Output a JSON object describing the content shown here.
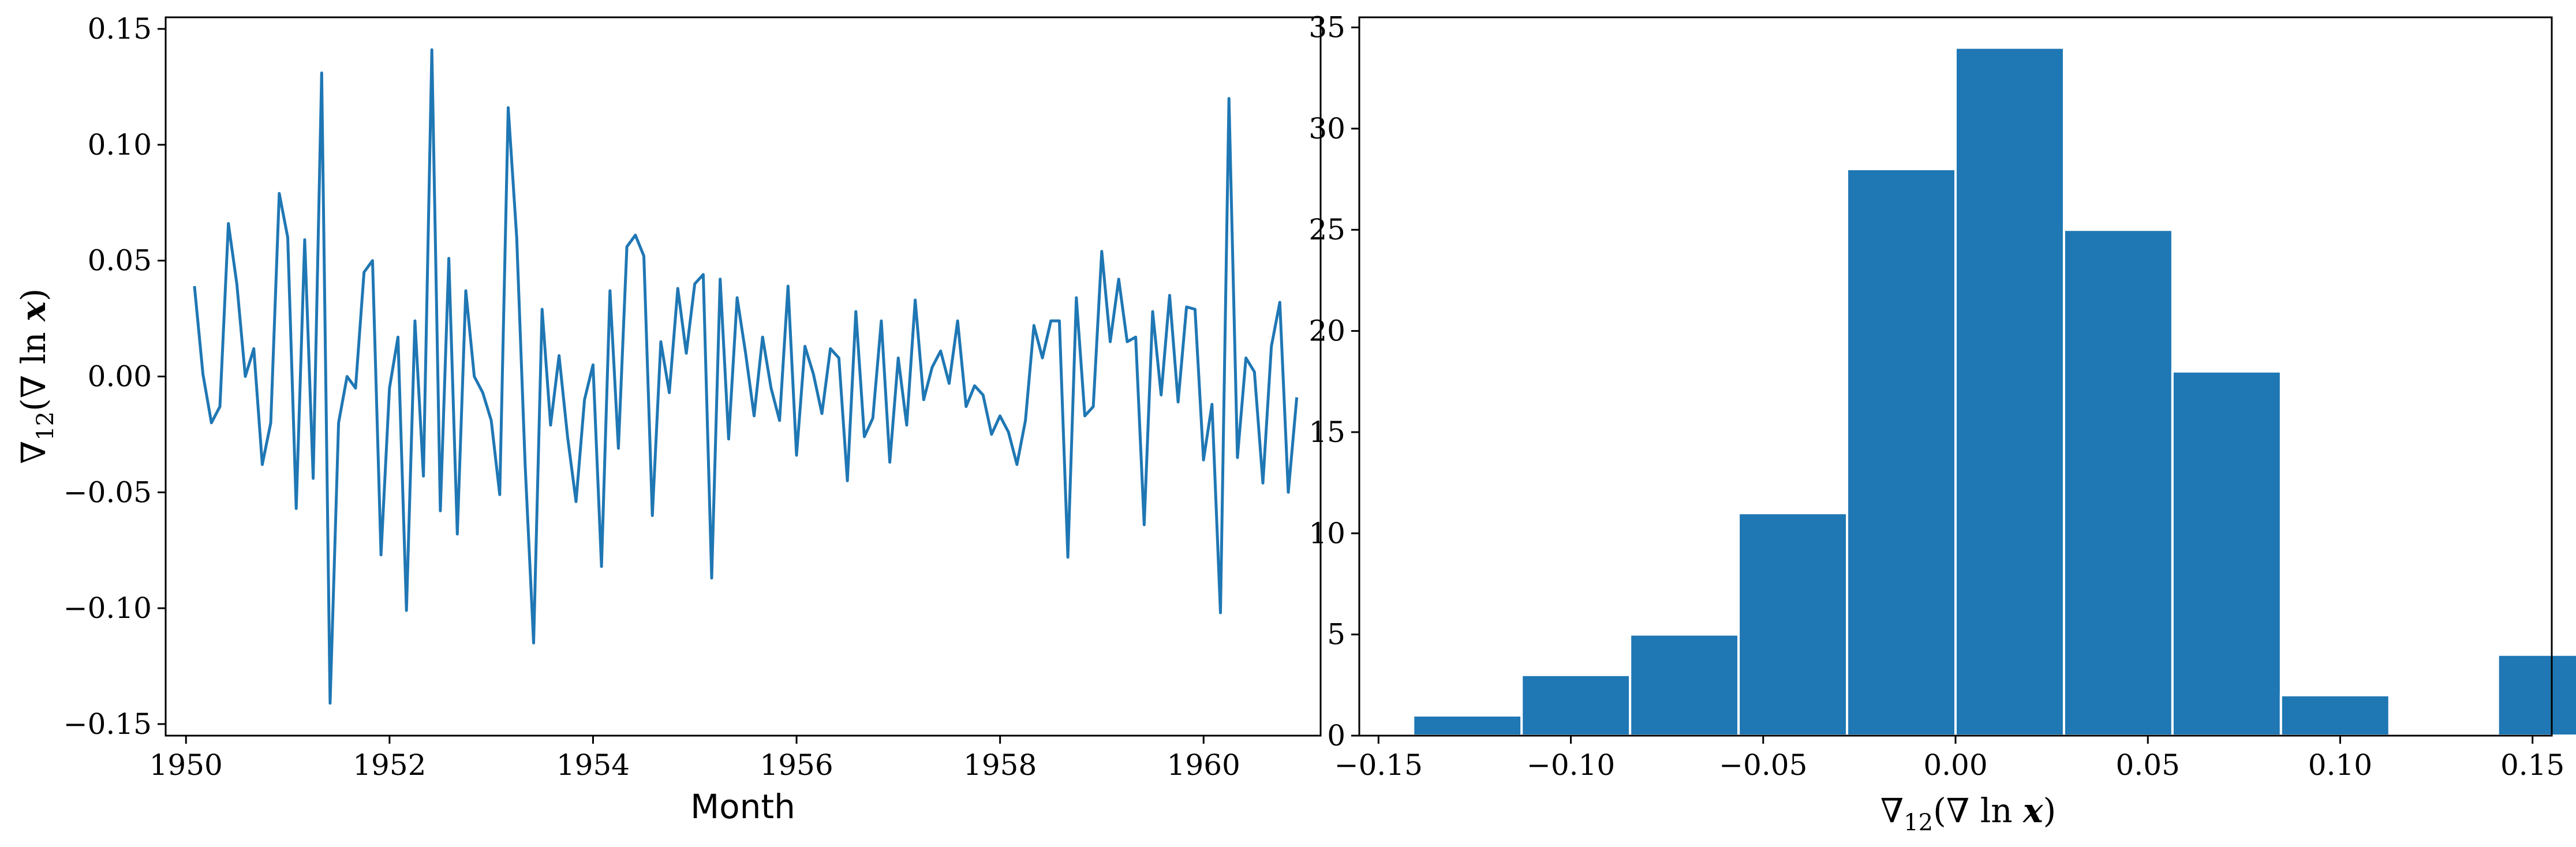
{
  "chart_data": [
    {
      "type": "line",
      "xlabel": "Month",
      "ylabel": "∇₁₂(∇ ln x)",
      "xlim": [
        1949.8,
        1961.15
      ],
      "ylim": [
        -0.155,
        0.155
      ],
      "xticks": [
        1950,
        1952,
        1954,
        1956,
        1958,
        1960
      ],
      "xtick_labels": [
        "1950",
        "1952",
        "1954",
        "1956",
        "1958",
        "1960"
      ],
      "yticks": [
        -0.15,
        -0.1,
        -0.05,
        0.0,
        0.05,
        0.1,
        0.15
      ],
      "ytick_labels": [
        "−0.15",
        "−0.10",
        "−0.05",
        "0.00",
        "0.05",
        "0.10",
        "0.15"
      ],
      "color": "#1f77b4",
      "series": [
        {
          "x_start": 1950.083,
          "x_step": 0.08333,
          "values": [
            0.039,
            0.001,
            -0.02,
            -0.013,
            0.066,
            0.04,
            0.0,
            0.012,
            -0.038,
            -0.02,
            0.079,
            0.06,
            -0.057,
            0.059,
            -0.044,
            0.131,
            -0.141,
            -0.02,
            0.0,
            -0.005,
            0.045,
            0.05,
            -0.077,
            -0.005,
            0.017,
            -0.101,
            0.024,
            -0.043,
            0.141,
            -0.058,
            0.051,
            -0.068,
            0.037,
            0.0,
            -0.007,
            -0.019,
            -0.051,
            0.116,
            0.06,
            -0.038,
            -0.115,
            0.029,
            -0.021,
            0.009,
            -0.026,
            -0.054,
            -0.01,
            0.005,
            -0.082,
            0.037,
            -0.031,
            0.056,
            0.061,
            0.052,
            -0.06,
            0.015,
            -0.007,
            0.038,
            0.01,
            0.04,
            0.044,
            -0.087,
            0.042,
            -0.027,
            0.034,
            0.01,
            -0.017,
            0.017,
            -0.005,
            -0.019,
            0.039,
            -0.034,
            0.013,
            0.001,
            -0.016,
            0.012,
            0.008,
            -0.045,
            0.028,
            -0.026,
            -0.018,
            0.024,
            -0.037,
            0.008,
            -0.021,
            0.033,
            -0.01,
            0.004,
            0.011,
            -0.003,
            0.024,
            -0.013,
            -0.004,
            -0.008,
            -0.025,
            -0.017,
            -0.024,
            -0.038,
            -0.019,
            0.022,
            0.008,
            0.024,
            0.024,
            -0.078,
            0.034,
            -0.017,
            -0.013,
            0.054,
            0.015,
            0.042,
            0.015,
            0.017,
            -0.064,
            0.028,
            -0.008,
            0.035,
            -0.011,
            0.03,
            0.029,
            -0.036,
            -0.012,
            -0.102,
            0.12,
            -0.035,
            0.008,
            0.002,
            -0.046,
            0.013,
            0.032,
            -0.05,
            -0.009
          ]
        }
      ]
    },
    {
      "type": "bar",
      "subtype": "histogram",
      "xlabel": "∇₁₂(∇ ln x)",
      "ylabel": "",
      "xlim": [
        -0.155,
        0.155
      ],
      "ylim": [
        0,
        35.5
      ],
      "xticks": [
        -0.15,
        -0.1,
        -0.05,
        0.0,
        0.05,
        0.1,
        0.15
      ],
      "xtick_labels": [
        "−0.15",
        "−0.10",
        "−0.05",
        "0.00",
        "0.05",
        "0.10",
        "0.15"
      ],
      "yticks": [
        0,
        5,
        10,
        15,
        20,
        25,
        30,
        35
      ],
      "ytick_labels": [
        "0",
        "5",
        "10",
        "15",
        "20",
        "25",
        "30",
        "35"
      ],
      "color": "#1f77b4",
      "bin_start": -0.141,
      "bin_width": 0.0282,
      "counts": [
        1,
        3,
        5,
        11,
        28,
        34,
        25,
        18,
        2,
        0,
        4
      ]
    }
  ]
}
